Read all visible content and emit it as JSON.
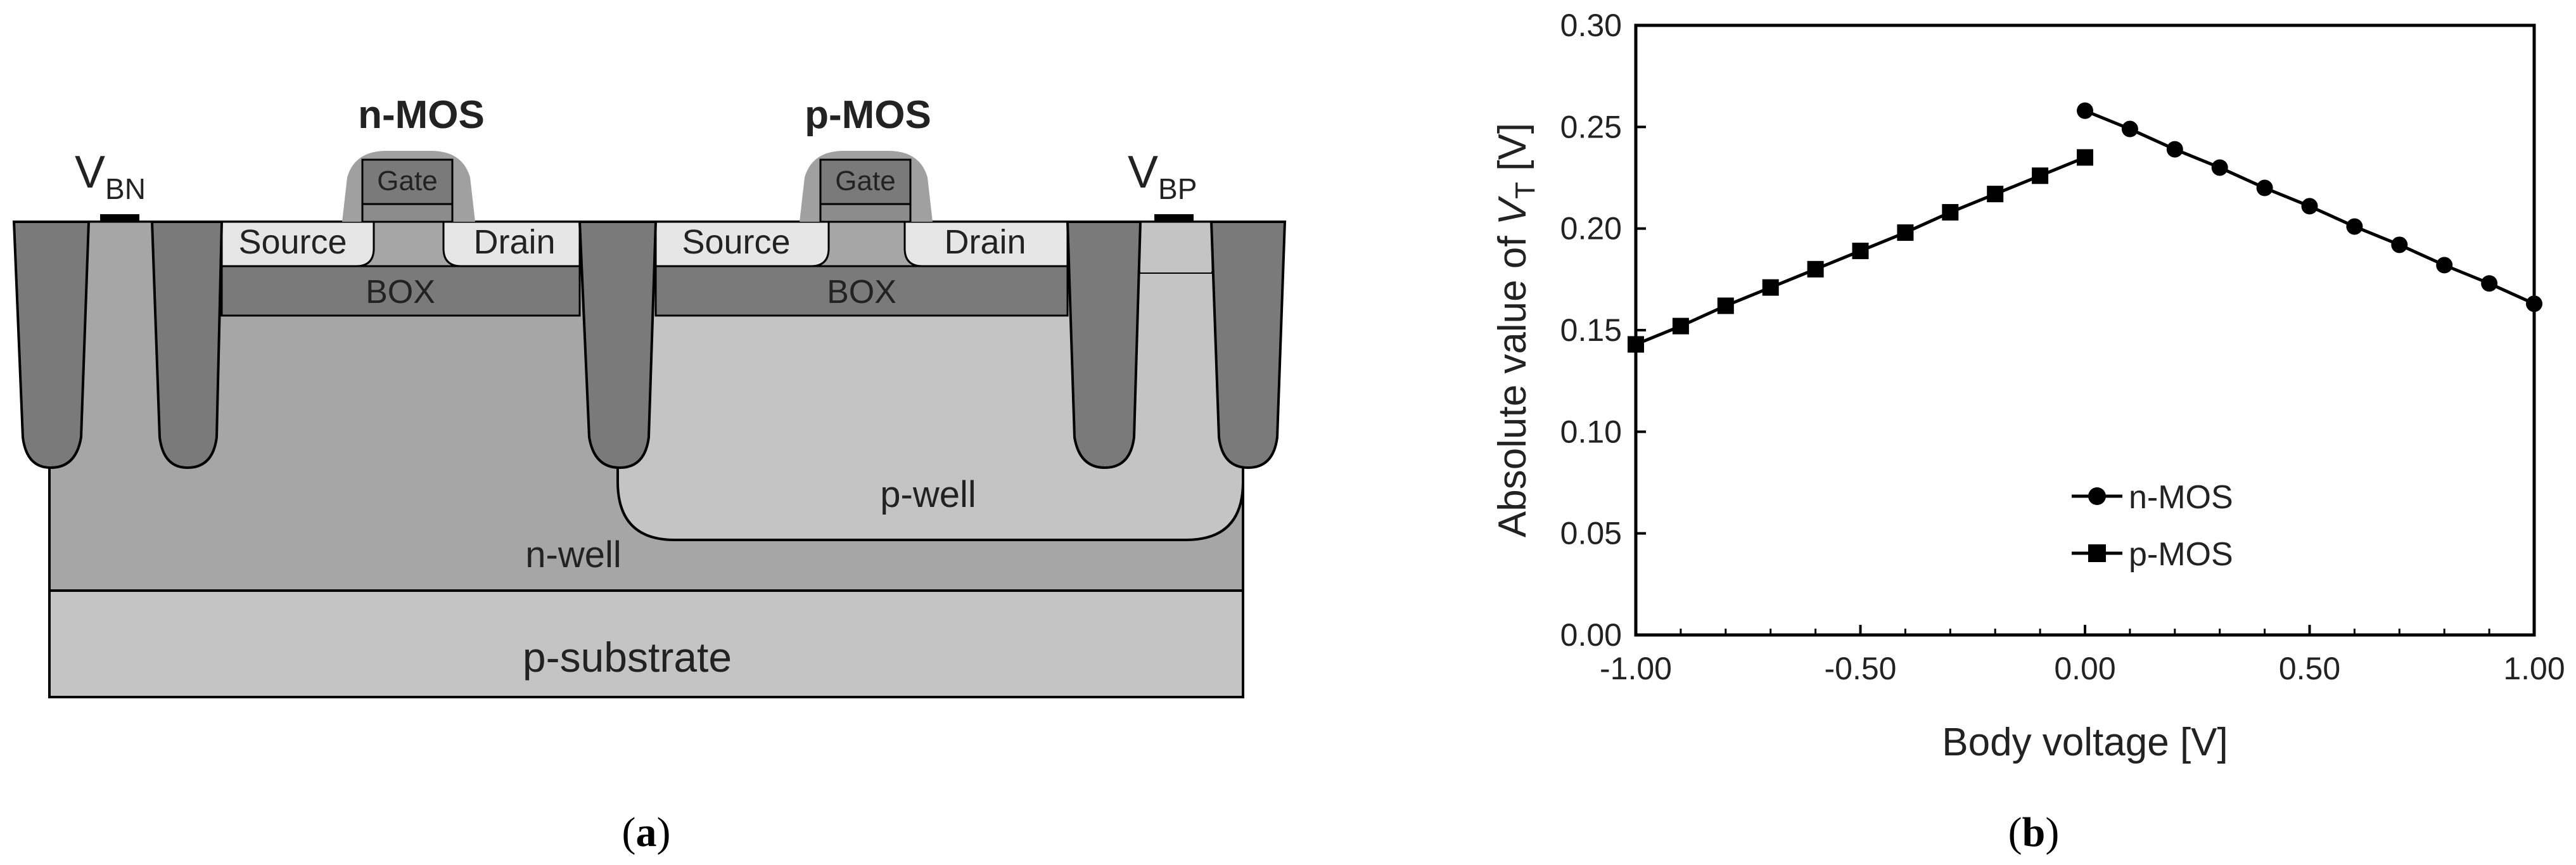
{
  "panel_a": {
    "labels": {
      "nmos": "n-MOS",
      "pmos": "p-MOS",
      "vbn_main": "V",
      "vbn_sub": "BN",
      "vbp_main": "V",
      "vbp_sub": "BP",
      "gate": "Gate",
      "source": "Source",
      "drain": "Drain",
      "box": "BOX",
      "pwell": "p-well",
      "nwell": "n-well",
      "psubstrate": "p-substrate"
    },
    "caption_open": "(",
    "caption_letter": "a",
    "caption_close": ")"
  },
  "panel_b": {
    "caption_open": "(",
    "caption_letter": "b",
    "caption_close": ")"
  },
  "colors": {
    "sti": "#7a7a7a",
    "box": "#7a7a7a",
    "nwell": "#a6a6a6",
    "pwell": "#c4c4c4",
    "substrate": "#c4c4c4",
    "source_drain": "#e6e6e6",
    "gate_spacer": "#a0a0a0",
    "gate": "#7a7a7a",
    "line": "#000000"
  },
  "chart_data": {
    "type": "line",
    "xlabel": "Body voltage [V]",
    "ylabel": "Absolute value of V_T [V]",
    "ylabel_prefix": "Absolute value of ",
    "ylabel_var": "V",
    "ylabel_sub": "T",
    "ylabel_suffix": " [V]",
    "xlim": [
      -1.0,
      1.0
    ],
    "ylim": [
      0.0,
      0.3
    ],
    "xticks": [
      -1.0,
      -0.5,
      0.0,
      0.5,
      1.0
    ],
    "xtick_labels": [
      "-1.00",
      "-0.50",
      "0.00",
      "0.50",
      "1.00"
    ],
    "yticks": [
      0.0,
      0.05,
      0.1,
      0.15,
      0.2,
      0.25,
      0.3
    ],
    "ytick_labels": [
      "0.00",
      "0.05",
      "0.10",
      "0.15",
      "0.20",
      "0.25",
      "0.30"
    ],
    "grid": false,
    "legend_position": "bottom-right",
    "series": [
      {
        "name": "n-MOS",
        "marker": "circle",
        "x": [
          0.0,
          0.1,
          0.2,
          0.3,
          0.4,
          0.5,
          0.6,
          0.7,
          0.8,
          0.9,
          1.0
        ],
        "values": [
          0.258,
          0.249,
          0.239,
          0.23,
          0.22,
          0.211,
          0.201,
          0.192,
          0.182,
          0.173,
          0.163
        ]
      },
      {
        "name": "p-MOS",
        "marker": "square",
        "x": [
          -1.0,
          -0.9,
          -0.8,
          -0.7,
          -0.6,
          -0.5,
          -0.4,
          -0.3,
          -0.2,
          -0.1,
          0.0
        ],
        "values": [
          0.143,
          0.152,
          0.162,
          0.171,
          0.18,
          0.189,
          0.198,
          0.208,
          0.217,
          0.226,
          0.235
        ]
      }
    ]
  }
}
